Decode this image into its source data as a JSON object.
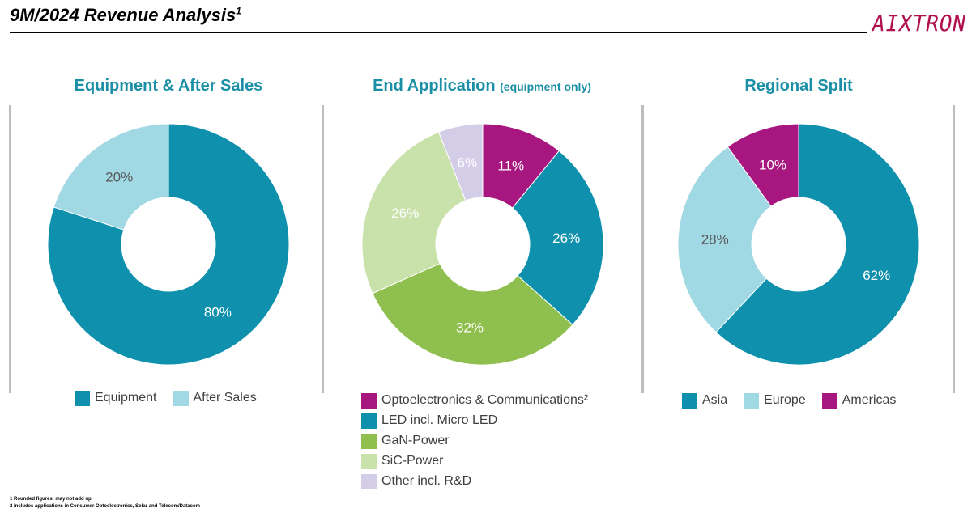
{
  "header": {
    "title": "9M/2024 Revenue Analysis",
    "title_sup": "1",
    "logo_text": "AIXTRON"
  },
  "colors": {
    "teal": "#0f91ad",
    "light_blue": "#a0d8e4",
    "magenta": "#a81680",
    "green": "#8fbf4e",
    "light_green": "#c9e2ab",
    "lavender": "#d4cde8",
    "title_teal": "#1a8fa6"
  },
  "chart_data": [
    {
      "type": "pie",
      "title": "Equipment & After Sales",
      "subtitle": "",
      "categories": [
        "Equipment",
        "After Sales"
      ],
      "values": [
        80,
        20
      ],
      "labels": [
        "80%",
        "20%"
      ],
      "colors": [
        "#0f91ad",
        "#a0d8e4"
      ],
      "legend": "bottom"
    },
    {
      "type": "pie",
      "title": "End Application",
      "subtitle": "(equipment only)",
      "categories": [
        "Optoelectronics & Communications²",
        "LED incl. Micro LED",
        "GaN-Power",
        "SiC-Power",
        "Other incl. R&D"
      ],
      "values": [
        11,
        26,
        32,
        26,
        6
      ],
      "labels": [
        "11%",
        "26%",
        "32%",
        "26%",
        "6%"
      ],
      "colors": [
        "#a81680",
        "#0f91ad",
        "#8fbf4e",
        "#c9e2ab",
        "#d4cde8"
      ],
      "legend": "bottom"
    },
    {
      "type": "pie",
      "title": "Regional Split",
      "subtitle": "",
      "categories": [
        "Asia",
        "Europe",
        "Americas"
      ],
      "values": [
        62,
        28,
        10
      ],
      "labels": [
        "62%",
        "28%",
        "10%"
      ],
      "colors": [
        "#0f91ad",
        "#a0d8e4",
        "#a81680"
      ],
      "legend": "bottom"
    }
  ],
  "footnotes": [
    "1 Rounded figures; may not add up",
    "2 includes applications in Consumer Optoelectronics, Solar and Telecom/Datacom"
  ]
}
